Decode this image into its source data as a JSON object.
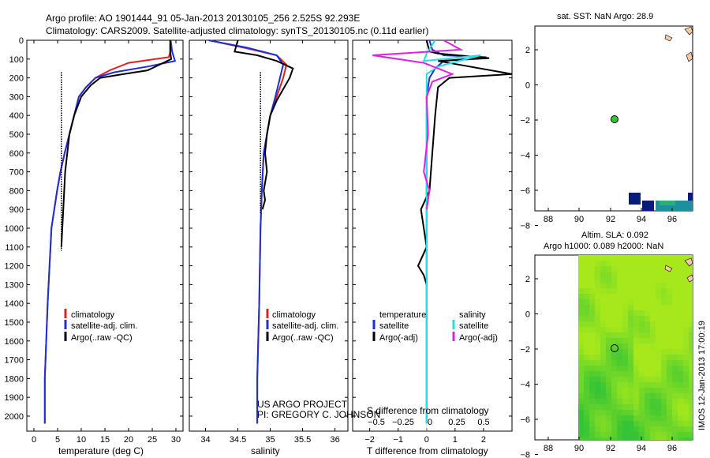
{
  "header": {
    "title_line1": "Argo profile: AO 1901444_91 05-Jan-2013 20130105_256 2.525S 92.293E",
    "title_line2": "Climatology: CARS2009. Satellite-adjusted climatology: synTS_20130105.nc (0.11d earlier)"
  },
  "colors": {
    "climatology": "#e02020",
    "satellite": "#1c2fd8",
    "argo": "#000000",
    "argo_raw_dotted": "#000000",
    "salinity_satellite": "#22e0e0",
    "salinity_argo": "#e020e0",
    "dark_navy": "#081a7a",
    "map_green_light": "#a6e81c",
    "map_green_dark": "#35c435"
  },
  "chart_data": [
    {
      "id": "temperature",
      "type": "line",
      "xlabel": "temperature (deg C)",
      "ylabel": "",
      "xlim": [
        -1.5,
        31.5
      ],
      "ylim": [
        2080,
        0
      ],
      "xticks": [
        0,
        5,
        10,
        15,
        20,
        25,
        30
      ],
      "yticks": [
        0,
        100,
        200,
        300,
        400,
        500,
        600,
        700,
        800,
        900,
        1000,
        1100,
        1200,
        1300,
        1400,
        1500,
        1600,
        1700,
        1800,
        1900,
        2000
      ],
      "legend": [
        "climatology",
        "satellite-adj. clim.",
        "Argo(..raw -QC)"
      ],
      "series": [
        {
          "name": "climatology",
          "color": "#e02020",
          "x": [
            28.8,
            28.8,
            28.5,
            20,
            16,
            13,
            11,
            9.5,
            8.5,
            7.5,
            6.5,
            5.6,
            4.9,
            4.3,
            3.7,
            3.3,
            2.9,
            2.6,
            2.3,
            2.3
          ],
          "y": [
            0,
            60,
            90,
            120,
            160,
            200,
            250,
            300,
            400,
            500,
            600,
            700,
            800,
            900,
            1000,
            1200,
            1400,
            1600,
            1800,
            2040
          ]
        },
        {
          "name": "satellite",
          "color": "#1c2fd8",
          "x": [
            28.9,
            29.2,
            29.8,
            24,
            17,
            13,
            11,
            9.5,
            8.5,
            7.5,
            6.5,
            5.6,
            4.9,
            4.3,
            3.7,
            3.3,
            2.9,
            2.6,
            2.3,
            2.3
          ],
          "y": [
            0,
            60,
            110,
            140,
            170,
            200,
            250,
            300,
            400,
            500,
            600,
            700,
            800,
            900,
            1000,
            1200,
            1400,
            1600,
            1800,
            2040
          ]
        },
        {
          "name": "argo",
          "color": "#000000",
          "x": [
            28.8,
            28.8,
            29.0,
            24,
            19,
            14,
            12,
            10,
            8.5,
            7.5,
            6.6,
            5.8
          ],
          "y": [
            0,
            60,
            100,
            160,
            180,
            200,
            240,
            300,
            400,
            500,
            700,
            1100
          ]
        },
        {
          "name": "argo_dotted",
          "color": "#000000",
          "dashed": true,
          "x": [
            5.8,
            5.8
          ],
          "y": [
            170,
            1120
          ]
        }
      ]
    },
    {
      "id": "salinity",
      "type": "line",
      "xlabel": "salinity",
      "xlim": [
        33.75,
        36.2
      ],
      "ylim": [
        2080,
        0
      ],
      "xticks": [
        34,
        34.5,
        35,
        35.5,
        36
      ],
      "legend": [
        "climatology",
        "satellite-adj. clim.",
        "Argo(..raw -QC)"
      ],
      "annotations": [
        "US ARGO PROJECT",
        "PI: GREGORY C. JOHNSON"
      ],
      "series": [
        {
          "name": "climatology",
          "color": "#e02020",
          "x": [
            34.05,
            34.6,
            35.1,
            35.25,
            35.2,
            35.1,
            35.0,
            34.95,
            34.9,
            34.87,
            34.85,
            34.83,
            34.8,
            34.8
          ],
          "y": [
            0,
            40,
            80,
            130,
            200,
            300,
            400,
            500,
            600,
            800,
            1000,
            1400,
            1800,
            2040
          ]
        },
        {
          "name": "satellite",
          "color": "#1c2fd8",
          "x": [
            34.05,
            34.65,
            35.1,
            35.2,
            35.15,
            35.08,
            35.0,
            34.95,
            34.9,
            34.87,
            34.85,
            34.83,
            34.8,
            34.8
          ],
          "y": [
            0,
            40,
            80,
            130,
            200,
            300,
            400,
            500,
            600,
            800,
            1000,
            1400,
            1800,
            2040
          ]
        },
        {
          "name": "argo",
          "color": "#000000",
          "x": [
            34.5,
            34.45,
            34.8,
            35.1,
            35.35,
            35.3,
            35.2,
            35.1,
            35.0,
            34.95,
            34.92,
            34.95,
            34.9,
            34.92,
            34.88
          ],
          "y": [
            0,
            60,
            80,
            110,
            150,
            200,
            260,
            320,
            400,
            500,
            600,
            700,
            800,
            850,
            900
          ]
        },
        {
          "name": "argo_dotted",
          "color": "#000000",
          "dashed": true,
          "x": [
            34.85,
            34.85
          ],
          "y": [
            170,
            920
          ]
        }
      ]
    },
    {
      "id": "differences",
      "type": "line",
      "xlabel": "T difference from climatology",
      "xlabel_top": "S difference from climatology",
      "xlim": [
        -2.6,
        3.0
      ],
      "ylim": [
        2080,
        0
      ],
      "xticks": [
        -2,
        -1,
        0,
        1,
        2
      ],
      "xticks_S": [
        "-0.5",
        "-0.25",
        "0",
        "0.25",
        "0.5"
      ],
      "legend_headers": [
        "temperature",
        "salinity"
      ],
      "legend": [
        "satellite",
        "Argo(-adj)",
        "satellite",
        "Argo(-adj)"
      ],
      "series": [
        {
          "name": "T satellite",
          "color": "#1c2fd8",
          "x": [
            0.1,
            0.2,
            0.6,
            2.1,
            0.6,
            0.3,
            0.1,
            0,
            0,
            0,
            0,
            0,
            0
          ],
          "y": [
            0,
            50,
            80,
            90,
            110,
            150,
            200,
            300,
            500,
            800,
            1200,
            1600,
            2040
          ]
        },
        {
          "name": "T argo",
          "color": "#000000",
          "x": [
            0,
            0.1,
            0.4,
            2.2,
            0.4,
            3,
            0.8,
            0.4,
            0.3,
            0.2,
            0.1,
            -0.2,
            0,
            -0.3,
            -0.1,
            0
          ],
          "y": [
            0,
            60,
            70,
            95,
            110,
            180,
            200,
            250,
            400,
            600,
            800,
            900,
            1100,
            1200,
            1250,
            1300
          ]
        },
        {
          "name": "S satellite",
          "color": "#22e0e0",
          "x": [
            0.3,
            0,
            -0.1,
            1.9,
            0.4,
            0,
            0,
            0,
            0,
            0,
            0,
            0,
            0
          ],
          "y": [
            0,
            70,
            110,
            80,
            140,
            180,
            250,
            400,
            700,
            1000,
            1400,
            1800,
            2040
          ]
        },
        {
          "name": "S argo",
          "color": "#e020e0",
          "x": [
            0.6,
            1.2,
            -1.9,
            -0.1,
            0.9,
            0.2,
            0,
            0.05,
            -0.1,
            0.1,
            0
          ],
          "y": [
            0,
            50,
            80,
            120,
            180,
            220,
            300,
            500,
            700,
            800,
            900
          ]
        }
      ]
    }
  ],
  "map_top": {
    "title": "sat. SST: NaN Argo: 28.9",
    "xticks": [
      "88",
      "90",
      "92",
      "94",
      "96"
    ],
    "yticks": [
      "2",
      "0",
      "-2",
      "-4",
      "-6",
      "-8"
    ],
    "float_marker": {
      "lon": 92.3,
      "lat": -2.5
    }
  },
  "map_bottom": {
    "title_line1": "Altim. SLA: 0.092",
    "title_line2": "Argo h1000: 0.089 h2000: NaN",
    "xticks": [
      "88",
      "90",
      "92",
      "94",
      "96"
    ],
    "yticks": [
      "2",
      "0",
      "-2",
      "-4",
      "-6",
      "-8"
    ],
    "float_marker": {
      "lon": 92.3,
      "lat": -2.5
    }
  },
  "footer": {
    "timestamp": "IMOS 12-Jan-2013 17:00:19"
  }
}
